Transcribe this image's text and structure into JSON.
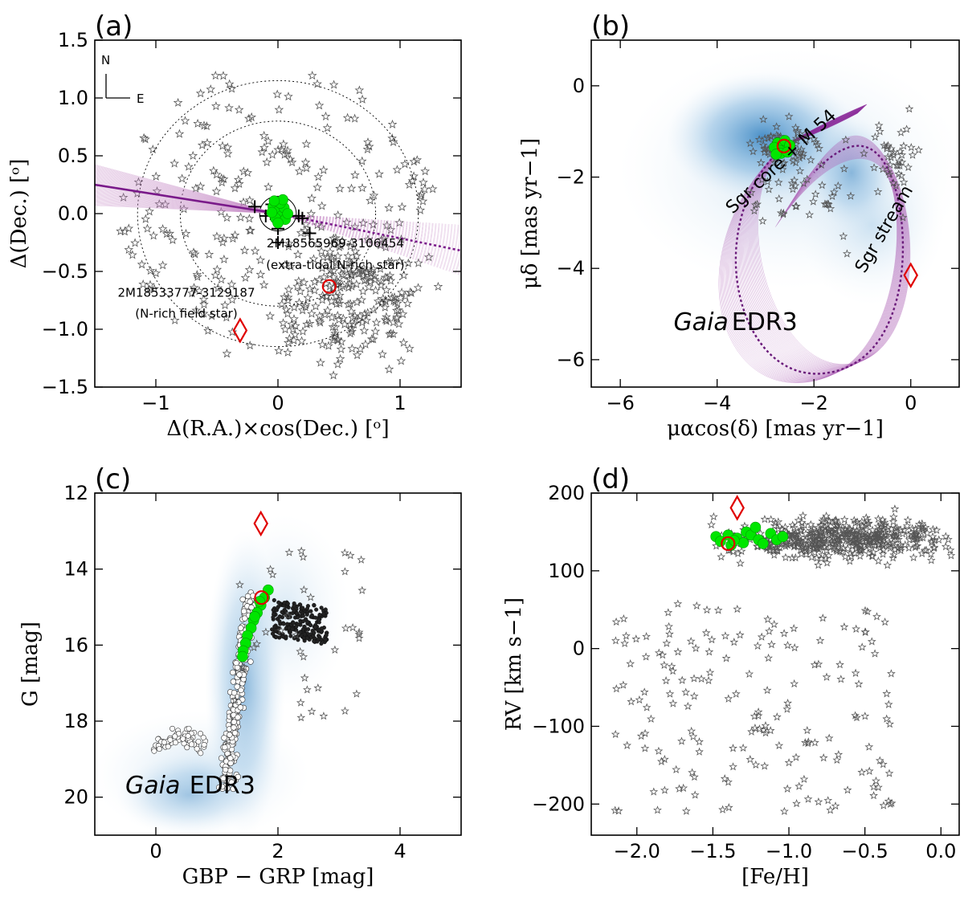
{
  "chart_data": [
    {
      "id": "a",
      "type": "scatter",
      "panel_label": "(a)",
      "xlabel": "Δ(R.A.)×cos(Dec.) [ᵒ]",
      "ylabel": "Δ(Dec.) [ᵒ]",
      "xlim": [
        -1.5,
        1.5
      ],
      "ylim": [
        -1.5,
        1.5
      ],
      "xticks": [
        "−1",
        "0",
        "1"
      ],
      "xtick_values": [
        -1,
        0,
        1
      ],
      "yticks": [
        "1.5",
        "1.0",
        "0.5",
        "0.0",
        "−0.5",
        "−1.0",
        "−1.5"
      ],
      "ytick_values": [
        1.5,
        1.0,
        0.5,
        0.0,
        -0.5,
        -1.0,
        -1.5
      ],
      "compass": {
        "north": "N",
        "east": "E"
      },
      "annotations": [
        {
          "text": "2M18565969-3106454",
          "x": 0.47,
          "y": -0.29
        },
        {
          "text": "(extra-tidal N-rich star)",
          "x": 0.47,
          "y": -0.48
        },
        {
          "text": "2M18533777-3129187",
          "x": -0.75,
          "y": -0.72
        },
        {
          "text": "(N-rich field star)",
          "x": -0.75,
          "y": -0.9
        }
      ],
      "circles_deg": [
        0.15,
        0.8,
        1.15
      ],
      "orbit_line_solid": {
        "x": [
          -1.5,
          0.0
        ],
        "y": [
          0.25,
          0.0
        ]
      },
      "orbit_line_dotted": {
        "x": [
          0.0,
          1.5
        ],
        "y": [
          0.0,
          -0.32
        ]
      },
      "members_green": [
        [
          -0.04,
          0.06
        ],
        [
          0.0,
          0.02
        ],
        [
          0.03,
          -0.02
        ],
        [
          -0.02,
          -0.04
        ],
        [
          0.05,
          0.05
        ],
        [
          0.02,
          0.09
        ],
        [
          -0.05,
          0.01
        ],
        [
          0.06,
          -0.05
        ],
        [
          0.0,
          -0.08
        ],
        [
          0.04,
          0.12
        ],
        [
          -0.03,
          0.11
        ],
        [
          0.08,
          0.0
        ]
      ],
      "plus_markers": [
        [
          -0.19,
          0.06
        ],
        [
          -0.1,
          -0.02
        ],
        [
          -0.05,
          0.08
        ],
        [
          0.0,
          -0.13
        ],
        [
          0.0,
          -0.25
        ],
        [
          0.17,
          -0.02
        ],
        [
          0.2,
          -0.04
        ],
        [
          0.26,
          -0.17
        ],
        [
          -0.06,
          0.0
        ]
      ],
      "extra_tidal_circle": [
        0.42,
        -0.63
      ],
      "field_diamond": [
        -0.31,
        -1.01
      ]
    },
    {
      "id": "b",
      "type": "scatter",
      "panel_label": "(b)",
      "xlabel": "μαcos(δ) [mas yr−1]",
      "ylabel": "μδ [mas yr−1]",
      "xlim": [
        -6.6,
        1.0
      ],
      "ylim": [
        -6.6,
        1.0
      ],
      "xticks": [
        "−6",
        "−4",
        "−2",
        "0"
      ],
      "xtick_values": [
        -6,
        -4,
        -2,
        0
      ],
      "yticks": [
        "0",
        "−2",
        "−4",
        "−6"
      ],
      "ytick_values": [
        0,
        -2,
        -4,
        -6
      ],
      "labels": [
        {
          "text": "Sgr core + M 54",
          "x": -2.6,
          "y": -1.75,
          "rotation": -43
        },
        {
          "text": "Sgr stream",
          "x": -0.45,
          "y": -3.2,
          "rotation": -60
        },
        {
          "text": "Gaia",
          "x": -4.9,
          "y": -5.35,
          "italic": true
        },
        {
          "text": "EDR3",
          "x": -3.7,
          "y": -5.35
        }
      ],
      "members_green": [
        [
          -2.75,
          -1.25
        ],
        [
          -2.62,
          -1.3
        ],
        [
          -2.55,
          -1.38
        ],
        [
          -2.7,
          -1.42
        ],
        [
          -2.82,
          -1.35
        ],
        [
          -2.6,
          -1.2
        ],
        [
          -2.5,
          -1.3
        ],
        [
          -2.68,
          -1.48
        ],
        [
          -2.78,
          -1.5
        ],
        [
          -2.55,
          -1.45
        ]
      ],
      "extra_tidal_circle": [
        -2.62,
        -1.32
      ],
      "field_diamond": [
        0.0,
        -4.15
      ]
    },
    {
      "id": "c",
      "type": "scatter",
      "panel_label": "(c)",
      "xlabel": "GBP − GRP [mag]",
      "ylabel": "G [mag]",
      "xlim": [
        -1.0,
        5.0
      ],
      "ylim": [
        21.0,
        12.0
      ],
      "xticks": [
        "0",
        "2",
        "4"
      ],
      "xtick_values": [
        0,
        2,
        4
      ],
      "yticks": [
        "12",
        "14",
        "16",
        "18",
        "20"
      ],
      "ytick_values": [
        12,
        14,
        16,
        18,
        20
      ],
      "labels": [
        {
          "text": "Gaia",
          "x": -0.5,
          "y": 19.9,
          "italic": true
        },
        {
          "text": "EDR3",
          "x": 0.55,
          "y": 19.9
        }
      ],
      "members_green": [
        [
          1.84,
          14.55
        ],
        [
          1.78,
          14.75
        ],
        [
          1.72,
          14.95
        ],
        [
          1.66,
          15.15
        ],
        [
          1.6,
          15.35
        ],
        [
          1.56,
          15.55
        ],
        [
          1.5,
          15.75
        ],
        [
          1.47,
          15.95
        ],
        [
          1.43,
          16.15
        ],
        [
          1.42,
          16.3
        ],
        [
          1.62,
          15.25
        ],
        [
          1.7,
          14.85
        ]
      ],
      "extra_tidal_circle": [
        1.73,
        14.75
      ],
      "field_diamond": [
        1.72,
        12.8
      ]
    },
    {
      "id": "d",
      "type": "scatter",
      "panel_label": "(d)",
      "xlabel": "[Fe/H]",
      "ylabel": "RV [km s−1]",
      "xlim": [
        -2.3,
        0.12
      ],
      "ylim": [
        -240,
        200
      ],
      "xticks": [
        "−2.0",
        "−1.5",
        "−1.0",
        "−0.5",
        "0.0"
      ],
      "xtick_values": [
        -2.0,
        -1.5,
        -1.0,
        -0.5,
        0.0
      ],
      "yticks": [
        "200",
        "100",
        "0",
        "−100",
        "−200"
      ],
      "ytick_values": [
        200,
        100,
        0,
        -100,
        -200
      ],
      "members_green": [
        [
          -1.48,
          144
        ],
        [
          -1.45,
          138
        ],
        [
          -1.4,
          146
        ],
        [
          -1.38,
          133
        ],
        [
          -1.34,
          142
        ],
        [
          -1.3,
          136
        ],
        [
          -1.28,
          150
        ],
        [
          -1.25,
          146
        ],
        [
          -1.22,
          156
        ],
        [
          -1.2,
          140
        ],
        [
          -1.17,
          135
        ],
        [
          -1.12,
          148
        ],
        [
          -1.08,
          140
        ],
        [
          -1.04,
          144
        ],
        [
          -1.36,
          139
        ]
      ],
      "extra_tidal_circle": [
        -1.4,
        135
      ],
      "field_diamond": [
        -1.34,
        181
      ]
    }
  ]
}
